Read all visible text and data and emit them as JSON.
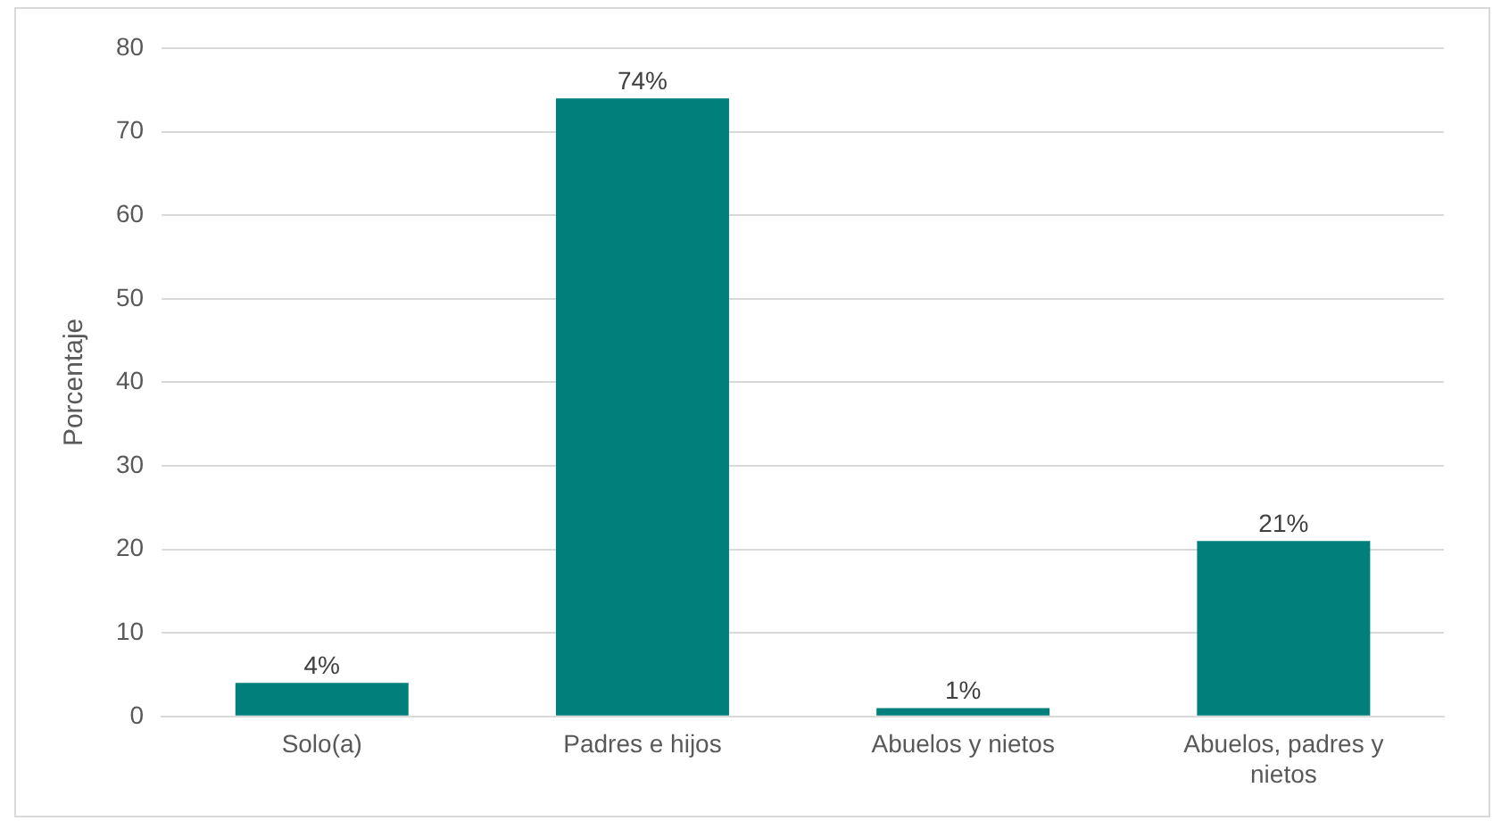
{
  "chart_data": {
    "type": "bar",
    "ylabel": "Porcentaje",
    "categories": [
      "Solo(a)",
      "Padres e hijos",
      "Abuelos y nietos",
      "Abuelos, padres y nietos"
    ],
    "values": [
      4,
      74,
      1,
      21
    ],
    "value_labels": [
      "4%",
      "74%",
      "1%",
      "21%"
    ],
    "color": "#007f7b",
    "ylim": [
      0,
      80
    ],
    "yticks": [
      0,
      10,
      20,
      30,
      40,
      50,
      60,
      70,
      80
    ],
    "grid": "y",
    "legend": false
  }
}
